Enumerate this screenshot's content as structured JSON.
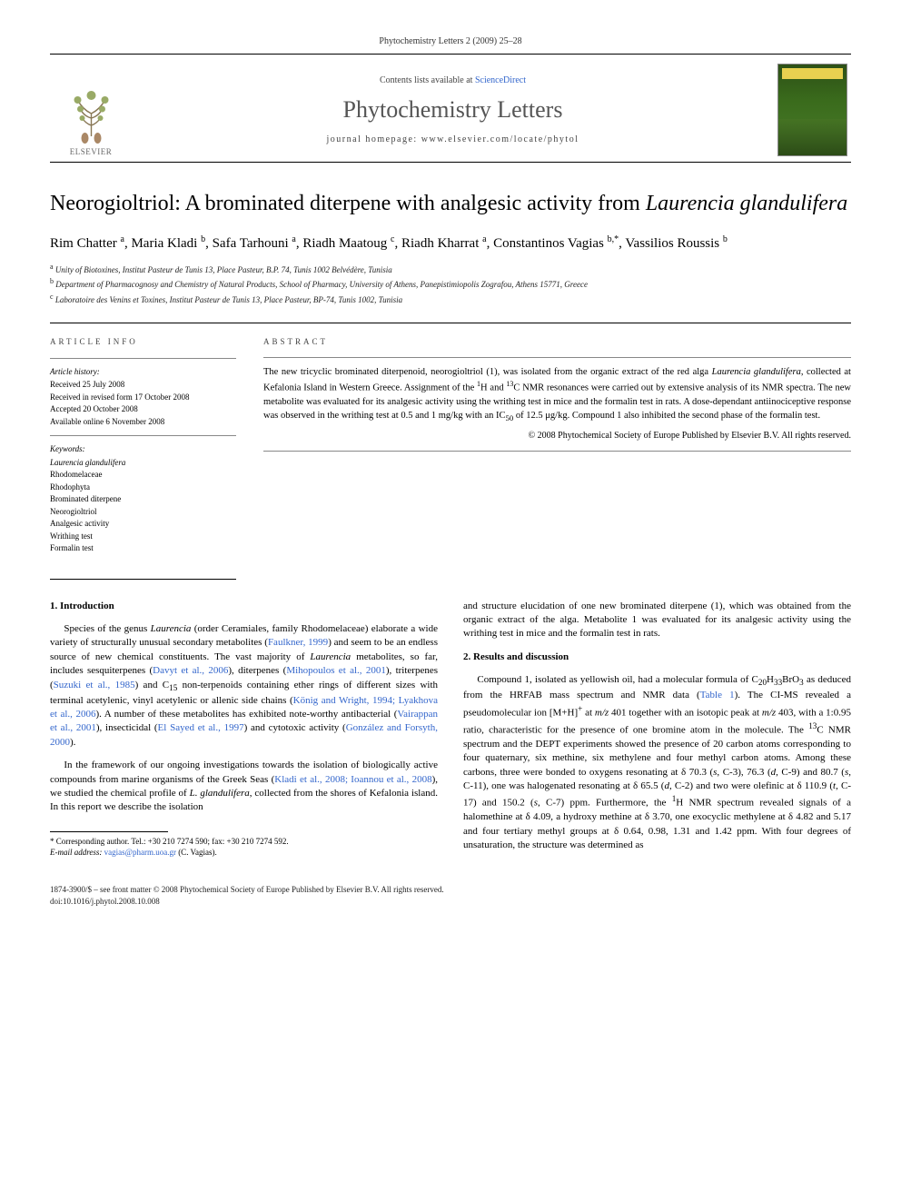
{
  "running_head": "Phytochemistry Letters 2 (2009) 25–28",
  "masthead": {
    "contents_prefix": "Contents lists available at ",
    "contents_link": "ScienceDirect",
    "journal_title": "Phytochemistry Letters",
    "homepage_prefix": "journal homepage: ",
    "homepage_url": "www.elsevier.com/locate/phytol",
    "publisher_label": "ELSEVIER"
  },
  "title": {
    "main": "Neorogioltriol: A brominated diterpene with analgesic activity from ",
    "species": "Laurencia glandulifera"
  },
  "authors_html": "Rim Chatter <sup>a</sup>, Maria Kladi <sup>b</sup>, Safa Tarhouni <sup>a</sup>, Riadh Maatoug <sup>c</sup>, Riadh Kharrat <sup>a</sup>, Constantinos Vagias <sup>b,*</sup>, Vassilios Roussis <sup>b</sup>",
  "affiliations": [
    {
      "sup": "a",
      "text": "Unity of Biotoxines, Institut Pasteur de Tunis 13, Place Pasteur, B.P. 74, Tunis 1002 Belvédère, Tunisia"
    },
    {
      "sup": "b",
      "text": "Department of Pharmacognosy and Chemistry of Natural Products, School of Pharmacy, University of Athens, Panepistimiopolis Zografou, Athens 15771, Greece"
    },
    {
      "sup": "c",
      "text": "Laboratoire des Venins et Toxines, Institut Pasteur de Tunis 13, Place Pasteur, BP-74, Tunis 1002, Tunisia"
    }
  ],
  "article_info": {
    "heading": "ARTICLE INFO",
    "history_head": "Article history:",
    "history": [
      "Received 25 July 2008",
      "Received in revised form 17 October 2008",
      "Accepted 20 October 2008",
      "Available online 6 November 2008"
    ],
    "keywords_head": "Keywords:",
    "keywords": [
      "Laurencia glandulifera",
      "Rhodomelaceae",
      "Rhodophyta",
      "Brominated diterpene",
      "Neorogioltriol",
      "Analgesic activity",
      "Writhing test",
      "Formalin test"
    ]
  },
  "abstract": {
    "heading": "ABSTRACT",
    "text": "The new tricyclic brominated diterpenoid, neorogioltriol (1), was isolated from the organic extract of the red alga Laurencia glandulifera, collected at Kefalonia Island in Western Greece. Assignment of the 1H and 13C NMR resonances were carried out by extensive analysis of its NMR spectra. The new metabolite was evaluated for its analgesic activity using the writhing test in mice and the formalin test in rats. A dose-dependant antiinociceptive response was observed in the writhing test at 0.5 and 1 mg/kg with an IC50 of 12.5 μg/kg. Compound 1 also inhibited the second phase of the formalin test.",
    "copyright": "© 2008 Phytochemical Society of Europe Published by Elsevier B.V. All rights reserved."
  },
  "sections": {
    "s1": {
      "num": "1.",
      "title": "Introduction",
      "p1": "Species of the genus Laurencia (order Ceramiales, family Rhodomelaceae) elaborate a wide variety of structurally unusual secondary metabolites (Faulkner, 1999) and seem to be an endless source of new chemical constituents. The vast majority of Laurencia metabolites, so far, includes sesquiterpenes (Davyt et al., 2006), diterpenes (Mihopoulos et al., 2001), triterpenes (Suzuki et al., 1985) and C15 non-terpenoids containing ether rings of different sizes with terminal acetylenic, vinyl acetylenic or allenic side chains (König and Wright, 1994; Lyakhova et al., 2006). A number of these metabolites has exhibited note-worthy antibacterial (Vairappan et al., 2001), insecticidal (El Sayed et al., 1997) and cytotoxic activity (González and Forsyth, 2000).",
      "p2": "In the framework of our ongoing investigations towards the isolation of biologically active compounds from marine organisms of the Greek Seas (Kladi et al., 2008; Ioannou et al., 2008), we studied the chemical profile of L. glandulifera, collected from the shores of Kefalonia island. In this report we describe the isolation",
      "p3": "and structure elucidation of one new brominated diterpene (1), which was obtained from the organic extract of the alga. Metabolite 1 was evaluated for its analgesic activity using the writhing test in mice and the formalin test in rats."
    },
    "s2": {
      "num": "2.",
      "title": "Results and discussion",
      "p1": "Compound 1, isolated as yellowish oil, had a molecular formula of C20H33BrO3 as deduced from the HRFAB mass spectrum and NMR data (Table 1). The CI-MS revealed a pseudomolecular ion [M+H]+ at m/z 401 together with an isotopic peak at m/z 403, with a 1:0.95 ratio, characteristic for the presence of one bromine atom in the molecule. The 13C NMR spectrum and the DEPT experiments showed the presence of 20 carbon atoms corresponding to four quaternary, six methine, six methylene and four methyl carbon atoms. Among these carbons, three were bonded to oxygens resonating at δ 70.3 (s, C-3), 76.3 (d, C-9) and 80.7 (s, C-11), one was halogenated resonating at δ 65.5 (d, C-2) and two were olefinic at δ 110.9 (t, C-17) and 150.2 (s, C-7) ppm. Furthermore, the 1H NMR spectrum revealed signals of a halomethine at δ 4.09, a hydroxy methine at δ 3.70, one exocyclic methylene at δ 4.82 and 5.17 and four tertiary methyl groups at δ 0.64, 0.98, 1.31 and 1.42 ppm. With four degrees of unsaturation, the structure was determined as"
    }
  },
  "correspondence": {
    "line1": "* Corresponding author. Tel.: +30 210 7274 590; fax: +30 210 7274 592.",
    "line2_label": "E-mail address:",
    "line2_email": "vagias@pharm.uoa.gr",
    "line2_tail": " (C. Vagias)."
  },
  "footer": {
    "line1": "1874-3900/$ – see front matter © 2008 Phytochemical Society of Europe Published by Elsevier B.V. All rights reserved.",
    "line2": "doi:10.1016/j.phytol.2008.10.008"
  },
  "colors": {
    "link": "#3366cc",
    "text": "#000000",
    "muted": "#444444",
    "rule": "#000000"
  }
}
